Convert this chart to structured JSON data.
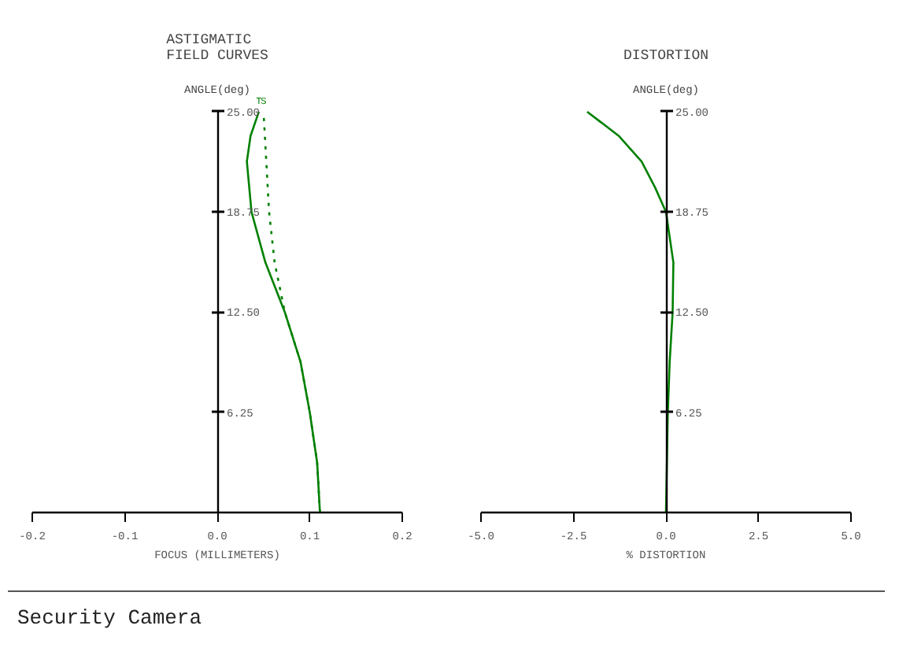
{
  "chart_data": [
    {
      "type": "line",
      "title": "ASTIGMATIC\nFIELD CURVES",
      "xlabel": "FOCUS (MILLIMETERS)",
      "ylabel": "ANGLE(deg)",
      "xlim": [
        -0.2,
        0.2
      ],
      "xticks": [
        {
          "value": -0.2,
          "label": "-0.2"
        },
        {
          "value": -0.1,
          "label": "-0.1"
        },
        {
          "value": 0,
          "label": "0.0"
        },
        {
          "value": 0.1,
          "label": "0.1"
        },
        {
          "value": 0.2,
          "label": "0.2"
        }
      ],
      "ylim": [
        0,
        25
      ],
      "yticks": [
        {
          "value": 6.25,
          "label": "6.25"
        },
        {
          "value": 12.5,
          "label": "12.50"
        },
        {
          "value": 18.75,
          "label": "18.75"
        },
        {
          "value": 25,
          "label": "25.00"
        }
      ],
      "grid": false,
      "legend": false,
      "series": [
        {
          "name": "T",
          "color": "#008000",
          "line_style": "solid",
          "x": [
            0.111,
            0.108,
            0.1,
            0.09,
            0.073,
            0.052,
            0.037,
            0.032,
            0.036,
            0.045
          ],
          "values": [
            0,
            3.1,
            6.25,
            9.4,
            12.5,
            15.6,
            18.75,
            21.9,
            23.5,
            25
          ]
        },
        {
          "name": "S",
          "color": "#008000",
          "line_style": "dotted",
          "x": [
            0.111,
            0.108,
            0.1,
            0.09,
            0.073,
            0.062,
            0.056,
            0.053,
            0.05
          ],
          "values": [
            0,
            3.1,
            6.25,
            9.4,
            12.5,
            15.6,
            18.75,
            21.9,
            25
          ]
        }
      ]
    },
    {
      "type": "line",
      "title": "DISTORTION",
      "xlabel": "% DISTORTION",
      "ylabel": "ANGLE(deg)",
      "xlim": [
        -5,
        5
      ],
      "xticks": [
        {
          "value": -5,
          "label": "-5.0"
        },
        {
          "value": -2.5,
          "label": "-2.5"
        },
        {
          "value": 0,
          "label": "0.0"
        },
        {
          "value": 2.5,
          "label": "2.5"
        },
        {
          "value": 5,
          "label": "5.0"
        }
      ],
      "ylim": [
        0,
        25
      ],
      "yticks": [
        {
          "value": 6.25,
          "label": "6.25"
        },
        {
          "value": 12.5,
          "label": "12.50"
        },
        {
          "value": 18.75,
          "label": "18.75"
        },
        {
          "value": 25,
          "label": "25.00"
        }
      ],
      "grid": false,
      "legend": false,
      "annotations": [
        "Security Camera"
      ],
      "series": [
        {
          "color": "#008000",
          "line_style": "solid",
          "x": [
            0,
            0.05,
            0.1,
            0.18,
            0.2,
            0.0,
            -0.3,
            -0.66,
            -1.28,
            -2.13
          ],
          "values": [
            0,
            6.25,
            9.4,
            12.5,
            15.6,
            18.75,
            20.3,
            21.9,
            23.5,
            25
          ]
        }
      ]
    }
  ]
}
